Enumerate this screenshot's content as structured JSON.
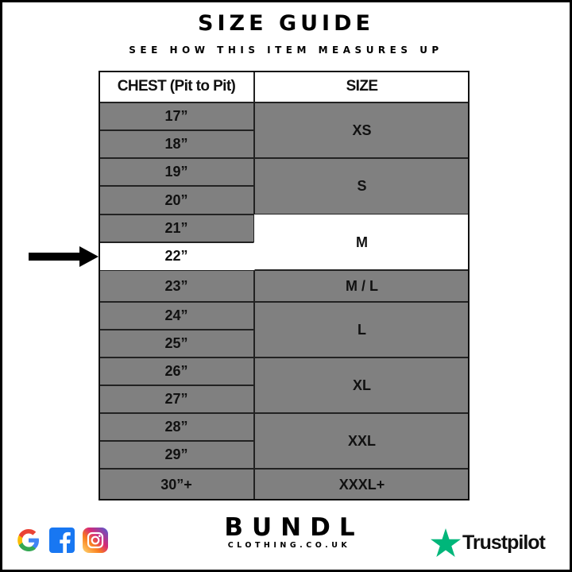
{
  "title": "SIZE GUIDE",
  "subtitle": "SEE HOW THIS ITEM MEASURES UP",
  "table": {
    "headers": [
      "CHEST (Pit to Pit)",
      "SIZE"
    ],
    "chest_rows": [
      "17”",
      "18”",
      "19”",
      "20”",
      "21”",
      "22”",
      "23”",
      "24”",
      "25”",
      "26”",
      "27”",
      "28”",
      "29”",
      "30”+"
    ],
    "sizes": [
      {
        "label": "XS",
        "rows": [
          0,
          1
        ]
      },
      {
        "label": "S",
        "rows": [
          2,
          3
        ]
      },
      {
        "label": "M",
        "rows": [
          4,
          5
        ],
        "highlighted": true
      },
      {
        "label": "M / L",
        "rows": [
          6
        ]
      },
      {
        "label": "L",
        "rows": [
          7,
          8
        ]
      },
      {
        "label": "XL",
        "rows": [
          9,
          10
        ]
      },
      {
        "label": "XXL",
        "rows": [
          11,
          12
        ]
      },
      {
        "label": "XXXL+",
        "rows": [
          13
        ]
      }
    ],
    "highlighted_chest_row": 5,
    "arrow_points_to": "22”"
  },
  "colors": {
    "cell_gray": "#808080",
    "highlight": "#ffffff",
    "trustpilot_green": "#00b67a"
  },
  "footer": {
    "brand": "BUNDL",
    "site": "CLOTHING.CO.UK",
    "social_icons": [
      "google-icon",
      "facebook-icon",
      "instagram-icon"
    ],
    "trustpilot": "Trustpilot"
  }
}
